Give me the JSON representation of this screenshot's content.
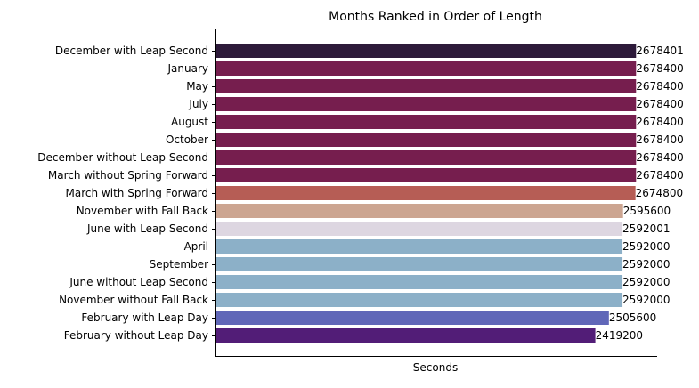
{
  "chart_data": {
    "type": "bar",
    "orientation": "horizontal",
    "title": "Months Ranked in Order of Length",
    "xlabel": "Seconds",
    "ylabel": "",
    "categories": [
      "December with Leap Second",
      "January",
      "May",
      "July",
      "August",
      "October",
      "December without Leap Second",
      "March without Spring Forward",
      "March with Spring Forward",
      "November with Fall Back",
      "June with Leap Second",
      "April",
      "September",
      "June without Leap Second",
      "November without Fall Back",
      "February with Leap Day",
      "February without Leap Day"
    ],
    "values": [
      2678401,
      2678400,
      2678400,
      2678400,
      2678400,
      2678400,
      2678400,
      2678400,
      2674800,
      2595600,
      2592001,
      2592000,
      2592000,
      2592000,
      2592000,
      2505600,
      2419200
    ],
    "value_labels": [
      "2678401",
      "2678400",
      "2678400",
      "2678400",
      "2678400",
      "2678400",
      "2678400",
      "2678400",
      "2674800",
      "2595600",
      "2592001",
      "2592000",
      "2592000",
      "2592000",
      "2592000",
      "2505600",
      "2419200"
    ],
    "colors": [
      "#2d1a3a",
      "#761e4e",
      "#761e4e",
      "#761e4e",
      "#761e4e",
      "#761e4e",
      "#761e4e",
      "#761e4e",
      "#b65d55",
      "#cca591",
      "#ddd6e1",
      "#8cb0c8",
      "#8cb0c8",
      "#8cb0c8",
      "#8cb0c8",
      "#6067b8",
      "#521d77"
    ],
    "xlim": [
      0,
      2812821
    ],
    "grid": false,
    "legend": "none",
    "x_ticks_shown": false
  }
}
